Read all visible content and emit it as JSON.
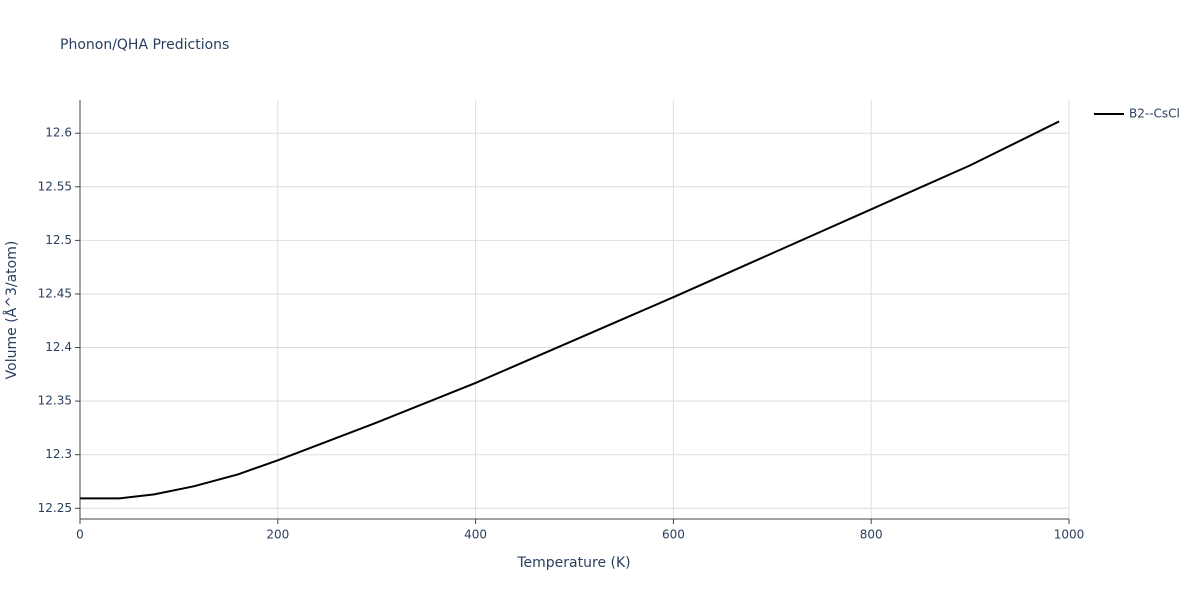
{
  "chart_data": {
    "type": "line",
    "title": "Phonon/QHA Predictions",
    "x_label": "Temperature (K)",
    "y_label": "Volume (Å^3/atom)",
    "x": [
      0,
      40,
      75,
      115,
      160,
      200,
      300,
      400,
      500,
      600,
      700,
      800,
      900,
      990
    ],
    "series": [
      {
        "name": "B2--CsCl",
        "color": "#000000",
        "values": [
          12.2593,
          12.2593,
          12.263,
          12.2705,
          12.2817,
          12.2948,
          12.33,
          12.367,
          12.407,
          12.447,
          12.488,
          12.529,
          12.57,
          12.611
        ]
      }
    ],
    "xlim": [
      0,
      1000
    ],
    "xticks": [
      0,
      200,
      400,
      600,
      800,
      1000
    ],
    "ylim": [
      12.24,
      12.631
    ],
    "yticks": [
      12.25,
      12.3,
      12.35,
      12.4,
      12.45,
      12.5,
      12.55,
      12.6
    ],
    "grid": true,
    "legend": "top-right"
  }
}
